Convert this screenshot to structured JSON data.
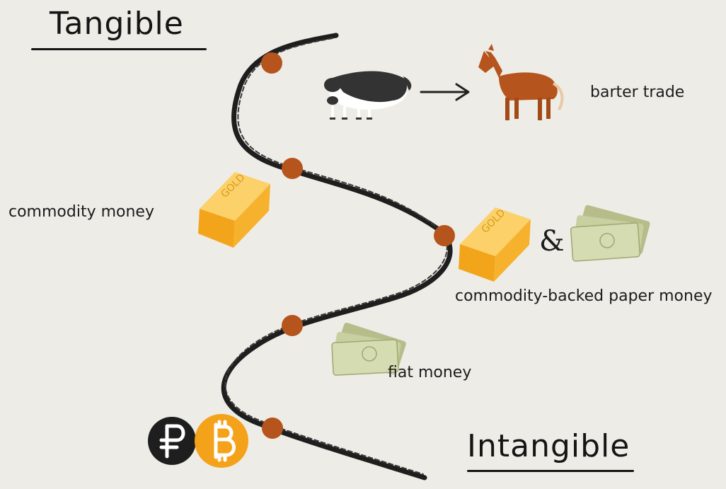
{
  "headings": {
    "top": "Tangible",
    "bottom": "Intangible"
  },
  "stages": [
    {
      "label": "barter trade",
      "icon": "cow-to-horse-icon"
    },
    {
      "label": "commodity money",
      "icon": "gold-bar-icon"
    },
    {
      "label": "commodity-backed paper money",
      "icon": "gold-and-banknotes-icon"
    },
    {
      "label": "fiat money",
      "icon": "banknotes-icon"
    },
    {
      "label": "",
      "icon": "ruble-bitcoin-icon"
    }
  ],
  "connector": "&",
  "gold_bar_text": "GOLD",
  "colors": {
    "background": "#eeece6",
    "path": "#1e1e1e",
    "node": "#b5541c",
    "gold": "#f6b22c",
    "bitcoin": "#f5a21b",
    "horse": "#b5541c",
    "banknote": "#c8cfa0"
  }
}
